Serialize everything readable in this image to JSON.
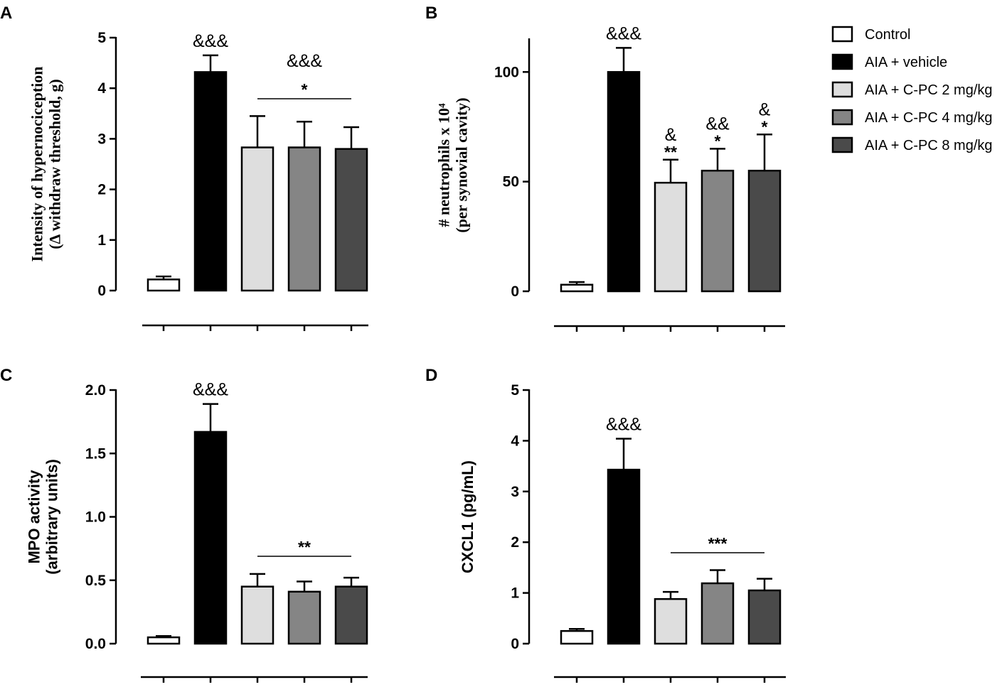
{
  "legend": [
    {
      "label": "Control",
      "color": "#ffffff"
    },
    {
      "label": "AIA + vehicle",
      "color": "#000000"
    },
    {
      "label": "AIA + C-PC 2 mg/kg",
      "color": "#dedede"
    },
    {
      "label": "AIA + C-PC 4 mg/kg",
      "color": "#858585"
    },
    {
      "label": "AIA + C-PC 8 mg/kg",
      "color": "#4a4a4a"
    }
  ],
  "chart_data": [
    {
      "panel": "A",
      "type": "bar",
      "ylabel_lines": [
        "Intensity of hypernociception",
        "(Δ withdraw threshold, g)"
      ],
      "ylim": [
        0,
        5
      ],
      "yticks": [
        "0",
        "1",
        "2",
        "3",
        "4",
        "5"
      ],
      "categories": [
        "Control",
        "AIA + vehicle",
        "AIA + C-PC 2 mg/kg",
        "AIA + C-PC 4 mg/kg",
        "AIA + C-PC 8 mg/kg"
      ],
      "values": [
        0.22,
        4.32,
        2.83,
        2.83,
        2.8
      ],
      "errors": [
        0.06,
        0.33,
        0.62,
        0.51,
        0.43
      ],
      "annotations": [
        {
          "bar": 1,
          "text": "&&&"
        }
      ],
      "group_annotation": {
        "from": 2,
        "to": 4,
        "lines": [
          "&&&",
          "*"
        ]
      }
    },
    {
      "panel": "B",
      "type": "bar",
      "ylabel_lines": [
        "# neutrophils x 10⁴",
        "(per synovial cavity)"
      ],
      "ylim": [
        0,
        115
      ],
      "yticks": [
        "0",
        "50",
        "100"
      ],
      "categories": [
        "Control",
        "AIA + vehicle",
        "AIA + C-PC 2 mg/kg",
        "AIA + C-PC 4 mg/kg",
        "AIA + C-PC 8 mg/kg"
      ],
      "values": [
        3,
        100,
        49.5,
        55,
        55
      ],
      "errors": [
        1.2,
        11,
        10.5,
        10,
        16.5
      ],
      "annotations": [
        {
          "bar": 1,
          "text": "&&&"
        },
        {
          "bar": 2,
          "lines": [
            "&",
            "**"
          ]
        },
        {
          "bar": 3,
          "lines": [
            "&&",
            "*"
          ]
        },
        {
          "bar": 4,
          "lines": [
            "&",
            "*"
          ]
        }
      ]
    },
    {
      "panel": "C",
      "type": "bar",
      "ylabel_lines": [
        "MPO activity",
        "(arbitrary units)"
      ],
      "ylim": [
        0,
        2.0
      ],
      "yticks": [
        "0.0",
        "0.5",
        "1.0",
        "1.5",
        "2.0"
      ],
      "categories": [
        "Control",
        "AIA + vehicle",
        "AIA + C-PC 2 mg/kg",
        "AIA + C-PC 4 mg/kg",
        "AIA + C-PC 8 mg/kg"
      ],
      "values": [
        0.05,
        1.67,
        0.45,
        0.41,
        0.45
      ],
      "errors": [
        0.01,
        0.22,
        0.1,
        0.08,
        0.07
      ],
      "annotations": [
        {
          "bar": 1,
          "text": "&&&"
        }
      ],
      "group_annotation": {
        "from": 2,
        "to": 4,
        "lines": [
          "**"
        ]
      }
    },
    {
      "panel": "D",
      "type": "bar",
      "ylabel_lines": [
        "CXCL1 (pg/mL)"
      ],
      "ylim": [
        0,
        5
      ],
      "yticks": [
        "0",
        "1",
        "2",
        "3",
        "4",
        "5"
      ],
      "categories": [
        "Control",
        "AIA + vehicle",
        "AIA + C-PC 2 mg/kg",
        "AIA + C-PC 4 mg/kg",
        "AIA + C-PC 8 mg/kg"
      ],
      "values": [
        0.25,
        3.43,
        0.88,
        1.19,
        1.05
      ],
      "errors": [
        0.04,
        0.61,
        0.14,
        0.26,
        0.23
      ],
      "annotations": [
        {
          "bar": 1,
          "text": "&&&"
        }
      ],
      "group_annotation": {
        "from": 2,
        "to": 4,
        "lines": [
          "***"
        ]
      }
    }
  ]
}
